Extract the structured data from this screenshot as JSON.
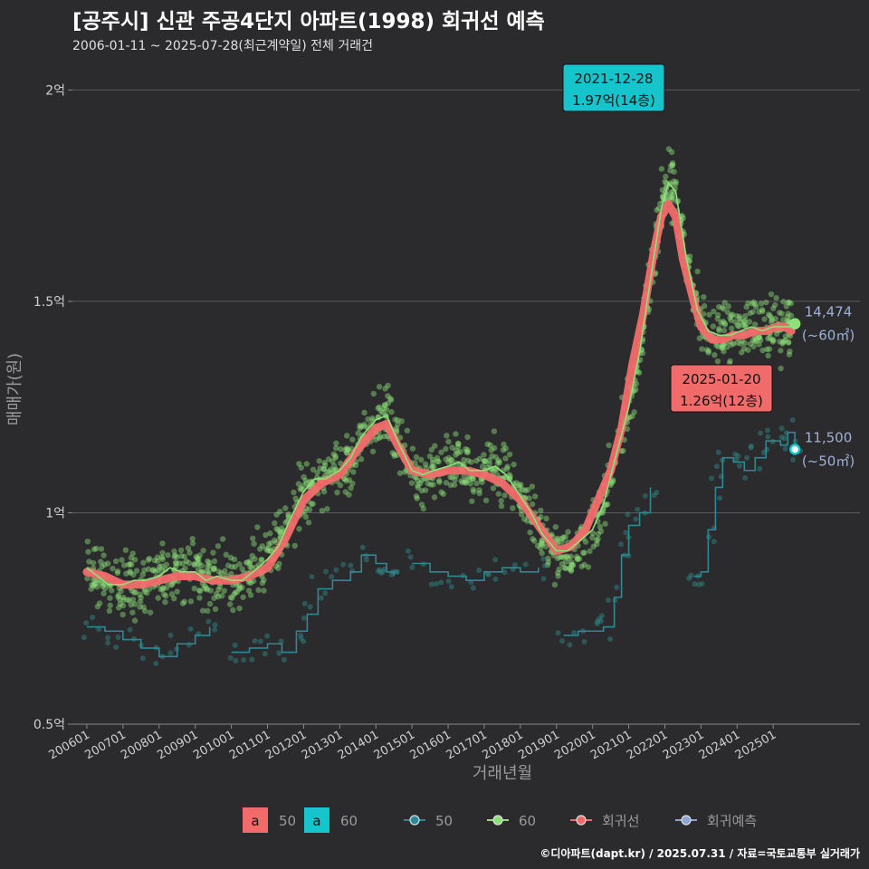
{
  "chart_data": {
    "type": "scatter",
    "title": "[공주시] 신관 주공4단지 아파트(1998) 회귀선 예측",
    "subtitle": "2006-01-11 ~ 2025-07-28(최근계약일) 전체 거래건",
    "xlabel": "거래년월",
    "ylabel": "매매가(원)",
    "ylim": [
      0.5,
      2.08
    ],
    "xlim": [
      2005.6,
      2027.4
    ],
    "y_ticks": [
      {
        "value": 0.5,
        "label": "0.5억"
      },
      {
        "value": 1.0,
        "label": "1억"
      },
      {
        "value": 1.5,
        "label": "1.5억"
      },
      {
        "value": 2.0,
        "label": "2억"
      }
    ],
    "x_ticks": [
      {
        "value": 2006,
        "label": "200601"
      },
      {
        "value": 2007,
        "label": "200701"
      },
      {
        "value": 2008,
        "label": "200801"
      },
      {
        "value": 2009,
        "label": "200901"
      },
      {
        "value": 2010,
        "label": "201001"
      },
      {
        "value": 2011,
        "label": "201101"
      },
      {
        "value": 2012,
        "label": "201201"
      },
      {
        "value": 2013,
        "label": "201301"
      },
      {
        "value": 2014,
        "label": "201401"
      },
      {
        "value": 2015,
        "label": "201501"
      },
      {
        "value": 2016,
        "label": "201601"
      },
      {
        "value": 2017,
        "label": "201701"
      },
      {
        "value": 2018,
        "label": "201801"
      },
      {
        "value": 2019,
        "label": "201901"
      },
      {
        "value": 2020,
        "label": "202001"
      },
      {
        "value": 2021,
        "label": "202101"
      },
      {
        "value": 2022,
        "label": "202201"
      },
      {
        "value": 2023,
        "label": "202301"
      },
      {
        "value": 2024,
        "label": "202401"
      },
      {
        "value": 2025,
        "label": "202501"
      }
    ],
    "grid": true,
    "series": [
      {
        "name": "60",
        "kind": "points+line",
        "color": "#8ee07a",
        "points": [
          [
            2006.0,
            0.87
          ],
          [
            2006.3,
            0.85
          ],
          [
            2006.6,
            0.83
          ],
          [
            2007.0,
            0.83
          ],
          [
            2007.3,
            0.84
          ],
          [
            2007.6,
            0.84
          ],
          [
            2008.0,
            0.85
          ],
          [
            2008.3,
            0.87
          ],
          [
            2008.6,
            0.86
          ],
          [
            2009.0,
            0.86
          ],
          [
            2009.3,
            0.84
          ],
          [
            2009.6,
            0.85
          ],
          [
            2010.0,
            0.84
          ],
          [
            2010.3,
            0.84
          ],
          [
            2010.6,
            0.86
          ],
          [
            2011.0,
            0.89
          ],
          [
            2011.3,
            0.92
          ],
          [
            2011.6,
            0.98
          ],
          [
            2012.0,
            1.05
          ],
          [
            2012.3,
            1.08
          ],
          [
            2012.6,
            1.08
          ],
          [
            2013.0,
            1.1
          ],
          [
            2013.3,
            1.13
          ],
          [
            2013.6,
            1.18
          ],
          [
            2014.0,
            1.22
          ],
          [
            2014.3,
            1.23
          ],
          [
            2014.6,
            1.17
          ],
          [
            2015.0,
            1.1
          ],
          [
            2015.3,
            1.09
          ],
          [
            2015.6,
            1.1
          ],
          [
            2016.0,
            1.11
          ],
          [
            2016.3,
            1.12
          ],
          [
            2016.6,
            1.1
          ],
          [
            2017.0,
            1.1
          ],
          [
            2017.3,
            1.11
          ],
          [
            2017.6,
            1.09
          ],
          [
            2018.0,
            1.04
          ],
          [
            2018.3,
            1.0
          ],
          [
            2018.6,
            0.95
          ],
          [
            2019.0,
            0.91
          ],
          [
            2019.3,
            0.91
          ],
          [
            2019.6,
            0.93
          ],
          [
            2020.0,
            0.96
          ],
          [
            2020.3,
            1.02
          ],
          [
            2020.6,
            1.12
          ],
          [
            2021.0,
            1.25
          ],
          [
            2021.3,
            1.38
          ],
          [
            2021.6,
            1.55
          ],
          [
            2021.9,
            1.72
          ],
          [
            2022.1,
            1.78
          ],
          [
            2022.3,
            1.76
          ],
          [
            2022.6,
            1.6
          ],
          [
            2022.9,
            1.48
          ],
          [
            2023.2,
            1.43
          ],
          [
            2023.5,
            1.42
          ],
          [
            2023.8,
            1.42
          ],
          [
            2024.1,
            1.43
          ],
          [
            2024.4,
            1.44
          ],
          [
            2024.7,
            1.43
          ],
          [
            2025.0,
            1.44
          ],
          [
            2025.3,
            1.44
          ],
          [
            2025.5,
            1.44
          ]
        ]
      },
      {
        "name": "50",
        "kind": "step",
        "color": "#2b8a95",
        "points": [
          [
            2006.0,
            0.73
          ],
          [
            2006.5,
            0.72
          ],
          [
            2007.0,
            0.7
          ],
          [
            2007.5,
            0.68
          ],
          [
            2008.0,
            0.66
          ],
          [
            2008.5,
            0.69
          ],
          [
            2009.0,
            0.71
          ],
          [
            2009.4,
            0.73
          ],
          [
            2009.7,
            null
          ],
          [
            2010.0,
            0.67
          ],
          [
            2010.5,
            0.68
          ],
          [
            2011.0,
            0.69
          ],
          [
            2011.4,
            0.67
          ],
          [
            2011.8,
            0.72
          ],
          [
            2012.1,
            0.76
          ],
          [
            2012.4,
            0.82
          ],
          [
            2012.8,
            0.84
          ],
          [
            2013.3,
            0.86
          ],
          [
            2013.6,
            0.9
          ],
          [
            2014.0,
            0.88
          ],
          [
            2014.3,
            0.86
          ],
          [
            2014.5,
            0.85
          ],
          [
            2014.8,
            null
          ],
          [
            2015.0,
            0.88
          ],
          [
            2015.5,
            0.86
          ],
          [
            2016.0,
            0.85
          ],
          [
            2016.5,
            0.84
          ],
          [
            2017.0,
            0.86
          ],
          [
            2017.5,
            0.87
          ],
          [
            2018.0,
            0.86
          ],
          [
            2018.5,
            0.87
          ],
          [
            2018.9,
            null
          ],
          [
            2019.2,
            0.71
          ],
          [
            2019.6,
            0.72
          ],
          [
            2020.0,
            0.72
          ],
          [
            2020.3,
            0.73
          ],
          [
            2020.6,
            0.8
          ],
          [
            2020.8,
            0.9
          ],
          [
            2021.0,
            0.97
          ],
          [
            2021.3,
            1.0
          ],
          [
            2021.6,
            1.06
          ],
          [
            2021.8,
            null
          ],
          [
            2022.8,
            0.85
          ],
          [
            2023.0,
            0.86
          ],
          [
            2023.2,
            0.96
          ],
          [
            2023.4,
            1.06
          ],
          [
            2023.6,
            1.13
          ],
          [
            2023.9,
            1.12
          ],
          [
            2024.2,
            1.1
          ],
          [
            2024.5,
            1.13
          ],
          [
            2024.8,
            1.17
          ],
          [
            2025.0,
            1.17
          ],
          [
            2025.2,
            1.16
          ],
          [
            2025.4,
            1.19
          ],
          [
            2025.6,
            1.15
          ]
        ]
      },
      {
        "name": "회귀선",
        "kind": "smooth",
        "color": "#f26b6b",
        "points": [
          [
            2006.0,
            0.86
          ],
          [
            2006.5,
            0.85
          ],
          [
            2007.0,
            0.83
          ],
          [
            2007.5,
            0.83
          ],
          [
            2008.0,
            0.84
          ],
          [
            2008.5,
            0.85
          ],
          [
            2009.0,
            0.85
          ],
          [
            2009.5,
            0.84
          ],
          [
            2010.0,
            0.84
          ],
          [
            2010.5,
            0.85
          ],
          [
            2011.0,
            0.87
          ],
          [
            2011.5,
            0.94
          ],
          [
            2012.0,
            1.03
          ],
          [
            2012.5,
            1.07
          ],
          [
            2013.0,
            1.09
          ],
          [
            2013.5,
            1.15
          ],
          [
            2014.0,
            1.2
          ],
          [
            2014.3,
            1.21
          ],
          [
            2014.6,
            1.16
          ],
          [
            2015.0,
            1.1
          ],
          [
            2015.5,
            1.09
          ],
          [
            2016.0,
            1.1
          ],
          [
            2016.5,
            1.1
          ],
          [
            2017.0,
            1.09
          ],
          [
            2017.5,
            1.07
          ],
          [
            2018.0,
            1.03
          ],
          [
            2018.5,
            0.97
          ],
          [
            2019.0,
            0.91
          ],
          [
            2019.4,
            0.92
          ],
          [
            2019.8,
            0.96
          ],
          [
            2020.1,
            1.02
          ],
          [
            2020.5,
            1.1
          ],
          [
            2020.8,
            1.2
          ],
          [
            2021.1,
            1.35
          ],
          [
            2021.4,
            1.47
          ],
          [
            2021.7,
            1.62
          ],
          [
            2021.9,
            1.7
          ],
          [
            2022.1,
            1.73
          ],
          [
            2022.3,
            1.7
          ],
          [
            2022.5,
            1.6
          ],
          [
            2022.8,
            1.5
          ],
          [
            2023.0,
            1.44
          ],
          [
            2023.3,
            1.41
          ],
          [
            2023.6,
            1.41
          ],
          [
            2023.9,
            1.42
          ],
          [
            2024.2,
            1.42
          ],
          [
            2024.5,
            1.43
          ],
          [
            2024.8,
            1.43
          ],
          [
            2025.1,
            1.44
          ],
          [
            2025.3,
            1.44
          ],
          [
            2025.5,
            1.43
          ]
        ]
      },
      {
        "name": "회귀예측",
        "kind": "smooth",
        "color": "#8ea4d2",
        "points": []
      }
    ],
    "annotations": [
      {
        "date": "2021-12-28",
        "text": "1.97억(14층)",
        "x": 2021.99,
        "y": 1.97,
        "fill": "#16c4cc"
      },
      {
        "date": "2025-01-20",
        "text": "1.26억(12층)",
        "x": 2025.05,
        "y": 1.26,
        "fill": "#f26b6b"
      }
    ],
    "end_labels": [
      {
        "value": "14,474",
        "unit": "(~60㎡)",
        "series": "60",
        "x": 2025.6,
        "y": 1.447
      },
      {
        "value": "11,500",
        "unit": "(~50㎡)",
        "series": "50",
        "x": 2025.6,
        "y": 1.15
      }
    ],
    "legend": {
      "position": "bottom",
      "fill_keys": [
        {
          "glyph": "a",
          "label": "50",
          "color": "#f26b6b"
        },
        {
          "glyph": "a",
          "label": "60",
          "color": "#16c4cc"
        }
      ],
      "line_keys": [
        {
          "label": "50",
          "color": "#2b8a95"
        },
        {
          "label": "60",
          "color": "#8ee07a"
        },
        {
          "label": "회귀선",
          "color": "#f26b6b"
        },
        {
          "label": "회귀예측",
          "color": "#8ea4d2"
        }
      ]
    }
  },
  "footer": "©디아파트(dapt.kr) / 2025.07.31 / 자료=국토교통부 실거래가"
}
